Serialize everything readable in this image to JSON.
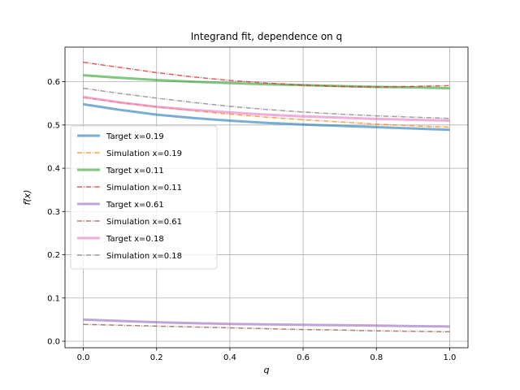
{
  "chart_data": {
    "type": "line",
    "title": "Integrand fit, dependence on q",
    "xlabel": "q",
    "ylabel": "f(⃗x)",
    "xlim": [
      -0.05,
      1.05
    ],
    "ylim": [
      -0.015,
      0.68
    ],
    "xticks": [
      0.0,
      0.2,
      0.4,
      0.6,
      0.8,
      1.0
    ],
    "xtick_labels": [
      "0.0",
      "0.2",
      "0.4",
      "0.6",
      "0.8",
      "1.0"
    ],
    "yticks": [
      0.0,
      0.1,
      0.2,
      0.3,
      0.4,
      0.5,
      0.6
    ],
    "ytick_labels": [
      "0.0",
      "0.1",
      "0.2",
      "0.3",
      "0.4",
      "0.5",
      "0.6"
    ],
    "grid": true,
    "legend_position": "center-left",
    "x": [
      0.0,
      0.1,
      0.2,
      0.3,
      0.4,
      0.5,
      0.6,
      0.7,
      0.8,
      0.9,
      1.0
    ],
    "series": [
      {
        "name": "Target x=0.19",
        "style": "solid",
        "color": "#1f77b4",
        "values": [
          0.548,
          0.535,
          0.524,
          0.516,
          0.51,
          0.505,
          0.501,
          0.498,
          0.495,
          0.492,
          0.489
        ]
      },
      {
        "name": "Simulation x=0.19",
        "style": "dashdot",
        "color": "#ff7f0e",
        "values": [
          0.563,
          0.552,
          0.542,
          0.533,
          0.525,
          0.518,
          0.512,
          0.507,
          0.502,
          0.498,
          0.495
        ]
      },
      {
        "name": "Target x=0.11",
        "style": "solid",
        "color": "#2ca02c",
        "values": [
          0.615,
          0.609,
          0.604,
          0.6,
          0.597,
          0.594,
          0.592,
          0.59,
          0.588,
          0.587,
          0.585
        ]
      },
      {
        "name": "Simulation x=0.11",
        "style": "dashdot",
        "color": "#d62728",
        "values": [
          0.645,
          0.633,
          0.621,
          0.611,
          0.603,
          0.597,
          0.592,
          0.589,
          0.588,
          0.589,
          0.591
        ]
      },
      {
        "name": "Target x=0.61",
        "style": "solid",
        "color": "#9467bd",
        "values": [
          0.05,
          0.047,
          0.044,
          0.042,
          0.04,
          0.039,
          0.038,
          0.037,
          0.036,
          0.035,
          0.034
        ]
      },
      {
        "name": "Simulation x=0.61",
        "style": "dashdot",
        "color": "#8c564b",
        "values": [
          0.039,
          0.037,
          0.035,
          0.033,
          0.031,
          0.029,
          0.027,
          0.026,
          0.024,
          0.023,
          0.022
        ]
      },
      {
        "name": "Target x=0.18",
        "style": "solid",
        "color": "#e377c2",
        "values": [
          0.565,
          0.552,
          0.542,
          0.535,
          0.529,
          0.524,
          0.52,
          0.517,
          0.514,
          0.512,
          0.51
        ]
      },
      {
        "name": "Simulation x=0.18",
        "style": "dashdot",
        "color": "#7f7f7f",
        "values": [
          0.585,
          0.573,
          0.562,
          0.552,
          0.543,
          0.536,
          0.53,
          0.525,
          0.521,
          0.518,
          0.515
        ]
      }
    ]
  }
}
